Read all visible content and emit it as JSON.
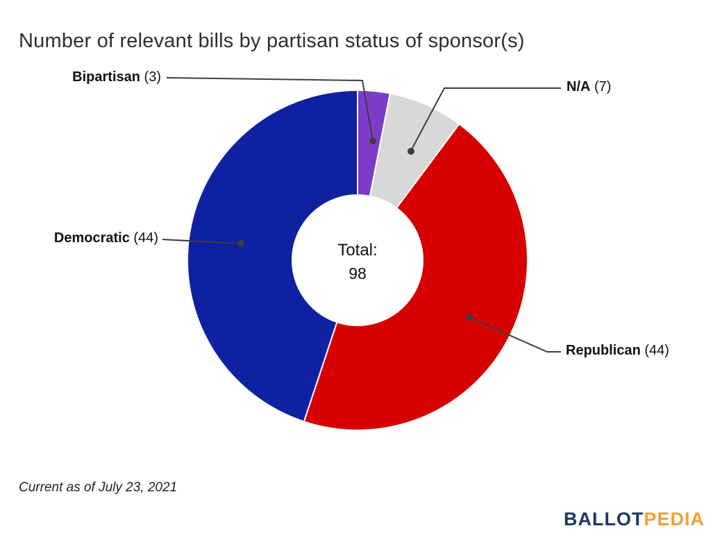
{
  "title": "Number of relevant bills by partisan status of sponsor(s)",
  "footnote": "Current as of July 23, 2021",
  "logo": {
    "part1": "BALLOT",
    "part2": "PEDIA",
    "part1_color": "#1b3668",
    "part2_color": "#f0a03a"
  },
  "chart_data": {
    "type": "pie",
    "donut": true,
    "title": "Number of relevant bills by partisan status of sponsor(s)",
    "total": 98,
    "start_angle_deg": -90,
    "direction": "clockwise",
    "legend_position": "callouts",
    "categories": [
      "Bipartisan",
      "N/A",
      "Republican",
      "Democratic"
    ],
    "values": [
      3,
      7,
      44,
      44
    ],
    "segments": [
      {
        "label": "Bipartisan",
        "value": 3,
        "count_text": "(3)",
        "color": "#7d3cc8"
      },
      {
        "label": "N/A",
        "value": 7,
        "count_text": "(7)",
        "color": "#d8d8d8"
      },
      {
        "label": "Republican",
        "value": 44,
        "count_text": "(44)",
        "color": "#d60000"
      },
      {
        "label": "Democratic",
        "value": 44,
        "count_text": "(44)",
        "color": "#0d21a1"
      }
    ],
    "center": {
      "title": "Total:",
      "value": "98"
    }
  }
}
